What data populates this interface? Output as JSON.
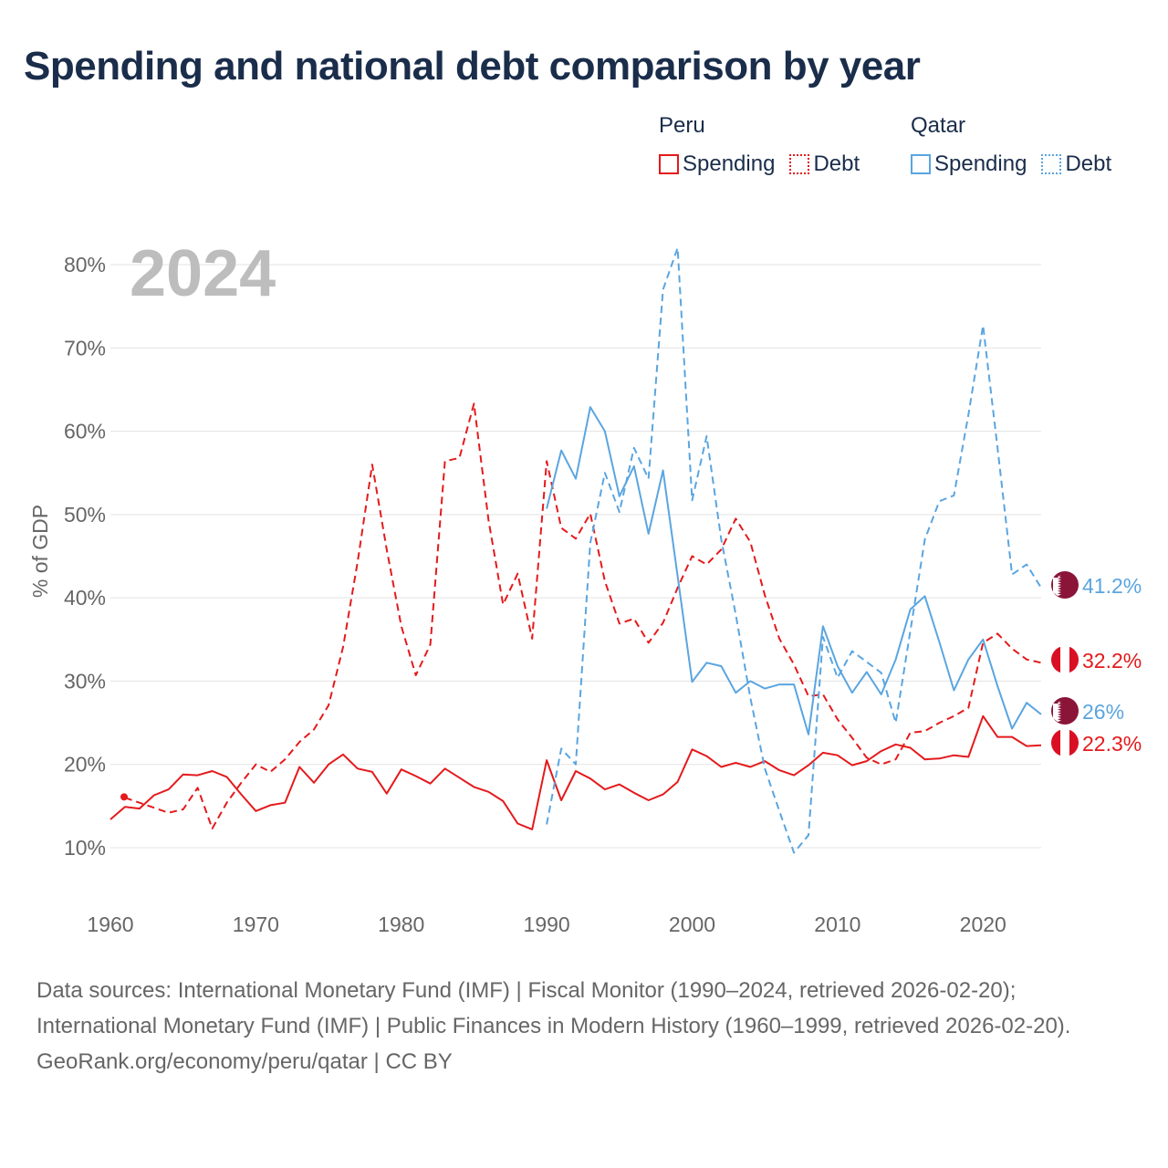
{
  "title": "Spending and national debt comparison by year",
  "legend": {
    "groups": [
      {
        "name": "Peru",
        "color": "#e41a1c",
        "items": [
          {
            "label": "Spending",
            "style": "solid"
          },
          {
            "label": "Debt",
            "style": "dotted"
          }
        ]
      },
      {
        "name": "Qatar",
        "color": "#5aa5e0",
        "items": [
          {
            "label": "Spending",
            "style": "solid"
          },
          {
            "label": "Debt",
            "style": "dotted"
          }
        ]
      }
    ]
  },
  "footer": {
    "sources": "Data sources: International Monetary Fund (IMF) | Fiscal Monitor (1990–2024, retrieved 2026-02-20); International Monetary Fund (IMF) | Public Finances in Modern History (1960–1999, retrieved 2026-02-20).",
    "credit": "GeoRank.org/economy/peru/qatar | CC BY"
  },
  "chart_data": {
    "type": "line",
    "year_label": "2024",
    "ylabel": "% of GDP",
    "xlim": [
      1960,
      2024
    ],
    "ylim": [
      10,
      80
    ],
    "x_ticks": [
      1960,
      1970,
      1980,
      1990,
      2000,
      2010,
      2020
    ],
    "y_ticks": [
      10,
      20,
      30,
      40,
      50,
      60,
      70,
      80
    ],
    "y_tick_format": "%",
    "series": [
      {
        "name": "Peru Spending",
        "country": "Peru",
        "color": "#e41a1c",
        "dash": "solid",
        "end_label": "22.3%",
        "start_marker": true,
        "start_year": 1960,
        "values": [
          13.4,
          14.9,
          14.7,
          16.3,
          17.0,
          18.8,
          18.7,
          19.2,
          18.5,
          16.4,
          14.4,
          15.1,
          15.4,
          19.7,
          17.8,
          20.0,
          21.2,
          19.5,
          19.1,
          16.5,
          19.4,
          18.6,
          17.7,
          19.5,
          18.4,
          17.3,
          16.7,
          15.6,
          12.9,
          12.2,
          20.5,
          15.7,
          19.2,
          18.3,
          17.0,
          17.6,
          16.6,
          15.7,
          16.4,
          17.9,
          21.8,
          21.0,
          19.7,
          20.2,
          19.7,
          20.4,
          19.3,
          18.7,
          19.9,
          21.4,
          21.1,
          19.9,
          20.4,
          21.6,
          22.4,
          22.0,
          20.6,
          20.7,
          21.1,
          20.9,
          25.8,
          23.3,
          23.3,
          22.2,
          22.3
        ]
      },
      {
        "name": "Peru Debt",
        "country": "Peru",
        "color": "#e41a1c",
        "dash": "dashed",
        "end_label": "32.2%",
        "start_year": 1961,
        "values": [
          16.0,
          15.4,
          14.8,
          14.2,
          14.6,
          17.2,
          12.3,
          15.4,
          17.8,
          20.0,
          19.1,
          20.6,
          22.7,
          24.2,
          27.1,
          34.1,
          44.3,
          56.0,
          45.8,
          36.6,
          30.7,
          34.4,
          56.4,
          56.8,
          63.3,
          49.3,
          39.2,
          42.9,
          35.1,
          56.4,
          48.4,
          47.1,
          50.1,
          42.0,
          36.9,
          37.5,
          34.6,
          37.0,
          41.2,
          45.0,
          44.0,
          45.8,
          49.5,
          46.7,
          40.3,
          35.1,
          32.0,
          28.2,
          28.4,
          25.4,
          23.2,
          20.8,
          20.0,
          20.6,
          23.8,
          24.0,
          25.0,
          25.8,
          26.8,
          34.6,
          35.7,
          33.9,
          32.6,
          32.2
        ]
      },
      {
        "name": "Qatar Spending",
        "country": "Qatar",
        "color": "#5aa5e0",
        "dash": "solid",
        "end_label": "26%",
        "start_year": 1990,
        "values": [
          50.7,
          57.7,
          54.3,
          62.9,
          60.0,
          52.2,
          55.8,
          47.7,
          55.3,
          42.6,
          29.9,
          32.2,
          31.8,
          28.6,
          30.0,
          29.1,
          29.6,
          29.6,
          23.6,
          36.6,
          31.8,
          28.6,
          31.1,
          28.4,
          32.6,
          38.6,
          40.2,
          34.7,
          28.9,
          32.6,
          35.0,
          29.4,
          24.3,
          27.4,
          26.0
        ]
      },
      {
        "name": "Qatar Debt",
        "country": "Qatar",
        "color": "#5aa5e0",
        "dash": "dashed",
        "end_label": "41.2%",
        "start_year": 1990,
        "values": [
          12.8,
          21.9,
          20.0,
          46.6,
          55.0,
          50.3,
          58.0,
          54.3,
          77.0,
          82.0,
          51.7,
          59.4,
          47.0,
          38.0,
          28.0,
          19.5,
          14.4,
          9.4,
          11.5,
          35.3,
          30.4,
          33.6,
          32.3,
          31.0,
          25.0,
          36.0,
          47.0,
          51.6,
          52.3,
          62.0,
          72.7,
          58.0,
          42.8,
          44.0,
          41.2
        ]
      }
    ]
  }
}
